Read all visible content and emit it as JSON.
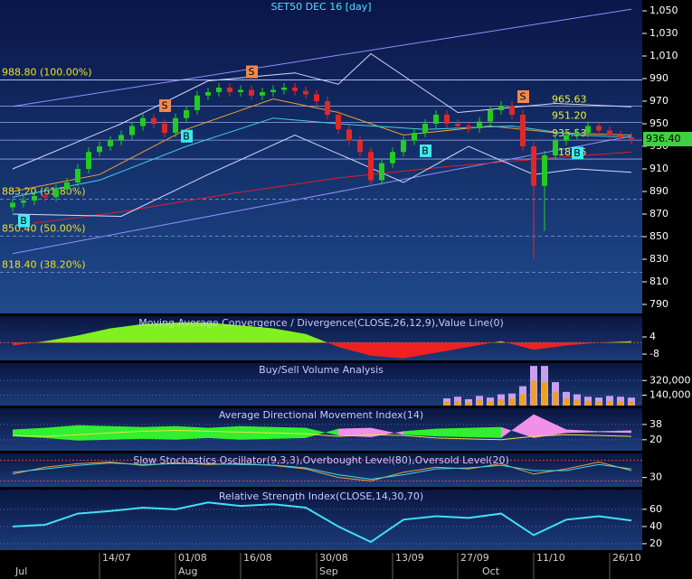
{
  "chart_data": [
    {
      "type": "candlestick",
      "title": "SET50 DEC 16   [day]",
      "open": [
        876,
        880,
        882,
        886,
        885,
        892,
        898,
        910,
        925,
        930,
        935,
        940,
        948,
        955,
        950,
        942,
        955,
        962,
        975,
        978,
        982,
        978,
        980,
        975,
        978,
        980,
        982,
        979,
        976,
        970,
        958,
        945,
        935,
        925,
        900,
        915,
        925,
        935,
        942,
        950,
        958,
        950,
        948,
        946,
        952,
        962,
        966,
        958,
        930,
        895,
        922,
        935,
        940,
        942,
        948,
        944,
        940,
        938
      ],
      "high": [
        884,
        886,
        890,
        890,
        896,
        902,
        914,
        929,
        934,
        939,
        944,
        952,
        959,
        959,
        954,
        959,
        966,
        979,
        982,
        986,
        986,
        984,
        984,
        982,
        984,
        986,
        986,
        983,
        980,
        974,
        962,
        949,
        939,
        929,
        919,
        929,
        939,
        946,
        954,
        962,
        962,
        954,
        952,
        956,
        966,
        970,
        970,
        962,
        934,
        926,
        939,
        944,
        946,
        952,
        952,
        948,
        944,
        942
      ],
      "low": [
        872,
        876,
        878,
        881,
        881,
        888,
        894,
        906,
        921,
        926,
        931,
        936,
        944,
        946,
        938,
        938,
        951,
        958,
        971,
        974,
        974,
        974,
        971,
        971,
        974,
        976,
        975,
        972,
        966,
        954,
        941,
        931,
        921,
        896,
        896,
        911,
        921,
        931,
        938,
        946,
        946,
        944,
        942,
        942,
        948,
        958,
        954,
        926,
        830,
        855,
        918,
        931,
        936,
        938,
        940,
        936,
        934,
        932
      ],
      "close": [
        880,
        882,
        886,
        885,
        892,
        898,
        910,
        925,
        930,
        935,
        940,
        948,
        955,
        950,
        942,
        955,
        962,
        975,
        978,
        982,
        978,
        980,
        975,
        978,
        980,
        982,
        979,
        976,
        970,
        958,
        945,
        935,
        925,
        900,
        915,
        925,
        935,
        942,
        950,
        958,
        950,
        948,
        946,
        952,
        962,
        966,
        958,
        930,
        895,
        922,
        935,
        940,
        942,
        948,
        944,
        940,
        938,
        936.4
      ],
      "up_color": "#22cc22",
      "down_color": "#e02828",
      "ylim": [
        781.2,
        1059.6
      ],
      "yticks": [
        {
          "value": 1050,
          "label": "1,050"
        },
        {
          "value": 1030,
          "label": "1,030"
        },
        {
          "value": 1010,
          "label": "1,010"
        },
        990,
        970,
        950,
        930,
        910,
        890,
        870,
        850,
        830,
        810,
        790
      ],
      "xlim": [
        -1.1667,
        58
      ],
      "xticks": [
        {
          "value": 8,
          "label": "14/07"
        },
        {
          "value": 15,
          "label": "01/08"
        },
        {
          "value": 21,
          "label": "16/08"
        },
        {
          "value": 28,
          "label": "30/08"
        },
        {
          "value": 35,
          "label": "13/09"
        },
        {
          "value": 41,
          "label": "27/09"
        },
        {
          "value": 48,
          "label": "11/10"
        },
        {
          "value": 55,
          "label": "26/10"
        }
      ],
      "months": [
        {
          "value": 0,
          "label": "Jul"
        },
        {
          "value": 15,
          "label": "Aug"
        },
        {
          "value": 28,
          "label": "Sep"
        },
        {
          "value": 43,
          "label": "Oct"
        }
      ],
      "trendlines": [
        {
          "color": "#9090ff",
          "x": [
            0,
            57
          ],
          "values": [
            965.4,
            1051.4
          ]
        },
        {
          "color": "#9090ff",
          "x": [
            0,
            57
          ],
          "values": [
            835,
            939
          ]
        }
      ],
      "overlays": [
        {
          "color": "#e02020",
          "x": [
            2,
            10,
            20,
            30,
            40,
            50,
            57
          ],
          "values": [
            862,
            872,
            888,
            902,
            912,
            920,
            925
          ]
        },
        {
          "color": "#f0a030",
          "x": [
            0,
            8,
            16,
            24,
            30,
            36,
            44,
            50,
            57
          ],
          "values": [
            890,
            905,
            945,
            972,
            960,
            940,
            948,
            942,
            940
          ]
        },
        {
          "color": "#40d0e0",
          "x": [
            0,
            8,
            16,
            24,
            30,
            38,
            46,
            52,
            57
          ],
          "values": [
            885,
            900,
            930,
            955,
            950,
            945,
            948,
            940,
            938
          ]
        },
        {
          "color": "#d8d8ff",
          "x": [
            0,
            10,
            18,
            26,
            30,
            33,
            41,
            50,
            57
          ],
          "values": [
            910,
            950,
            988,
            995,
            985,
            1012,
            960,
            968,
            965
          ]
        },
        {
          "color": "#d8d8ff",
          "x": [
            0,
            10,
            18,
            26,
            32,
            36,
            42,
            48,
            52,
            57
          ],
          "values": [
            870,
            868,
            905,
            940,
            915,
            898,
            930,
            905,
            910,
            907
          ]
        }
      ],
      "fib_levels": [
        {
          "value": 988.8,
          "label": "988.80 (100.00%)"
        },
        {
          "value": 883.2,
          "label": "883.20 (61.80%)"
        },
        {
          "value": 850.4,
          "label": "850.40 (50.00%)"
        },
        {
          "value": 818.4,
          "label": "818.40 (38.20%)"
        }
      ],
      "levels": [
        {
          "value": 965.63,
          "label": "965.63"
        },
        {
          "value": 951.2,
          "label": "951.20"
        },
        {
          "value": 935.53,
          "label": "935.53"
        },
        {
          "value": 918.75,
          "label": "918.75"
        }
      ],
      "last": {
        "value": 936.4,
        "label": "936.40"
      },
      "signals": [
        {
          "label": "B",
          "index": 1,
          "color": "#40e8f0",
          "position": "below"
        },
        {
          "label": "S",
          "index": 14,
          "color": "#f08850",
          "position": "above"
        },
        {
          "label": "B",
          "index": 16,
          "color": "#40e8f0",
          "position": "below"
        },
        {
          "label": "S",
          "index": 22,
          "color": "#f08850",
          "position": "above"
        },
        {
          "label": "B",
          "index": 38,
          "color": "#40e8f0",
          "position": "below"
        },
        {
          "label": "S",
          "index": 47,
          "color": "#f08850",
          "position": "above"
        },
        {
          "label": "B",
          "index": 52,
          "color": "#40e8f0",
          "position": "below"
        }
      ]
    },
    {
      "type": "macd",
      "title": "Moving Average Convergence / Divergence(CLOSE,26,12,9),Value Line(0)",
      "ylim": [
        -13,
        18.5
      ],
      "yticks": [
        4,
        -8
      ],
      "up_color": "#80f020",
      "down_color": "#f02020",
      "x": [
        0,
        3,
        6,
        9,
        12,
        15,
        18,
        21,
        24,
        27,
        30,
        33,
        36,
        39,
        42,
        45,
        48,
        51,
        54,
        57
      ],
      "values": [
        -2,
        1,
        5,
        10,
        13,
        14,
        14,
        12,
        10,
        6,
        -3,
        -9,
        -11,
        -7,
        -3,
        1,
        -5,
        -2,
        0,
        1
      ]
    },
    {
      "type": "bar",
      "title": "Buy/Sell Volume Analysis",
      "ylim": [
        0,
        535000
      ],
      "yticks": [
        {
          "value": 320000,
          "label": "320,000"
        },
        {
          "value": 140000,
          "label": "140,000"
        }
      ],
      "grid": true,
      "x": [
        40,
        41,
        42,
        43,
        44,
        45,
        46,
        47,
        48,
        49,
        50,
        51,
        52,
        53,
        54,
        55,
        56,
        57
      ],
      "series": [
        {
          "color": "#c8a0f0",
          "values": [
            100000,
            120000,
            90000,
            130000,
            110000,
            150000,
            160000,
            250000,
            500000,
            500000,
            300000,
            180000,
            150000,
            120000,
            110000,
            130000,
            120000,
            110000
          ]
        },
        {
          "color": "#f0a020",
          "values": [
            60000,
            70000,
            50000,
            80000,
            60000,
            90000,
            100000,
            150000,
            320000,
            300000,
            180000,
            100000,
            80000,
            70000,
            60000,
            70000,
            65000,
            60000
          ]
        }
      ]
    },
    {
      "type": "adx",
      "title": "Average Directional Movement Index(14)",
      "ylim": [
        6,
        57
      ],
      "yticks": [
        38,
        20
      ],
      "grid": true,
      "x": [
        0,
        3,
        6,
        9,
        12,
        15,
        18,
        21,
        24,
        27,
        30,
        33,
        36,
        39,
        42,
        45,
        48,
        51,
        54,
        57
      ],
      "series": [
        {
          "color": "#30f030",
          "values": [
            32,
            34,
            37,
            36,
            35,
            36,
            34,
            36,
            35,
            34,
            25,
            23,
            30,
            33,
            34,
            35,
            22,
            28,
            29,
            28
          ]
        },
        {
          "color": "#f090e8",
          "values": [
            24,
            22,
            19,
            20,
            21,
            20,
            22,
            20,
            21,
            22,
            33,
            34,
            26,
            24,
            23,
            22,
            50,
            32,
            30,
            31
          ]
        },
        {
          "color": "#f0e040",
          "values": [
            25,
            24,
            26,
            28,
            30,
            31,
            30,
            29,
            28,
            27,
            24,
            26,
            25,
            22,
            21,
            20,
            24,
            26,
            25,
            24
          ]
        }
      ]
    },
    {
      "type": "line",
      "title": "Slow Stochastics Oscillator(9,3,3),Overbought Level(80),Oversold Level(20)",
      "ylim": [
        0,
        100
      ],
      "yticks": [
        30
      ],
      "levels": [
        80,
        20
      ],
      "level_color": "#e04040",
      "x": [
        0,
        3,
        6,
        9,
        12,
        15,
        18,
        21,
        24,
        27,
        30,
        33,
        36,
        39,
        42,
        45,
        48,
        51,
        54,
        57
      ],
      "series": [
        {
          "color": "#f0a030",
          "values": [
            40,
            60,
            70,
            75,
            65,
            72,
            68,
            70,
            65,
            55,
            30,
            20,
            45,
            60,
            55,
            70,
            40,
            55,
            75,
            50
          ]
        },
        {
          "color": "#40d8f0",
          "values": [
            45,
            55,
            65,
            72,
            68,
            70,
            70,
            68,
            66,
            58,
            38,
            25,
            38,
            55,
            58,
            65,
            50,
            50,
            68,
            55
          ]
        }
      ]
    },
    {
      "type": "line",
      "title": "Relative Strength Index(CLOSE,14,30,70)",
      "ylim": [
        11.5,
        83
      ],
      "yticks": [
        60,
        40,
        20
      ],
      "grid": true,
      "x": [
        0,
        3,
        6,
        9,
        12,
        15,
        18,
        21,
        24,
        27,
        30,
        33,
        36,
        39,
        42,
        45,
        48,
        51,
        54,
        57
      ],
      "series": [
        {
          "color": "#40e0f8",
          "values": [
            40,
            42,
            55,
            58,
            62,
            60,
            68,
            64,
            66,
            62,
            40,
            22,
            48,
            52,
            50,
            55,
            30,
            48,
            52,
            47
          ]
        }
      ]
    }
  ]
}
